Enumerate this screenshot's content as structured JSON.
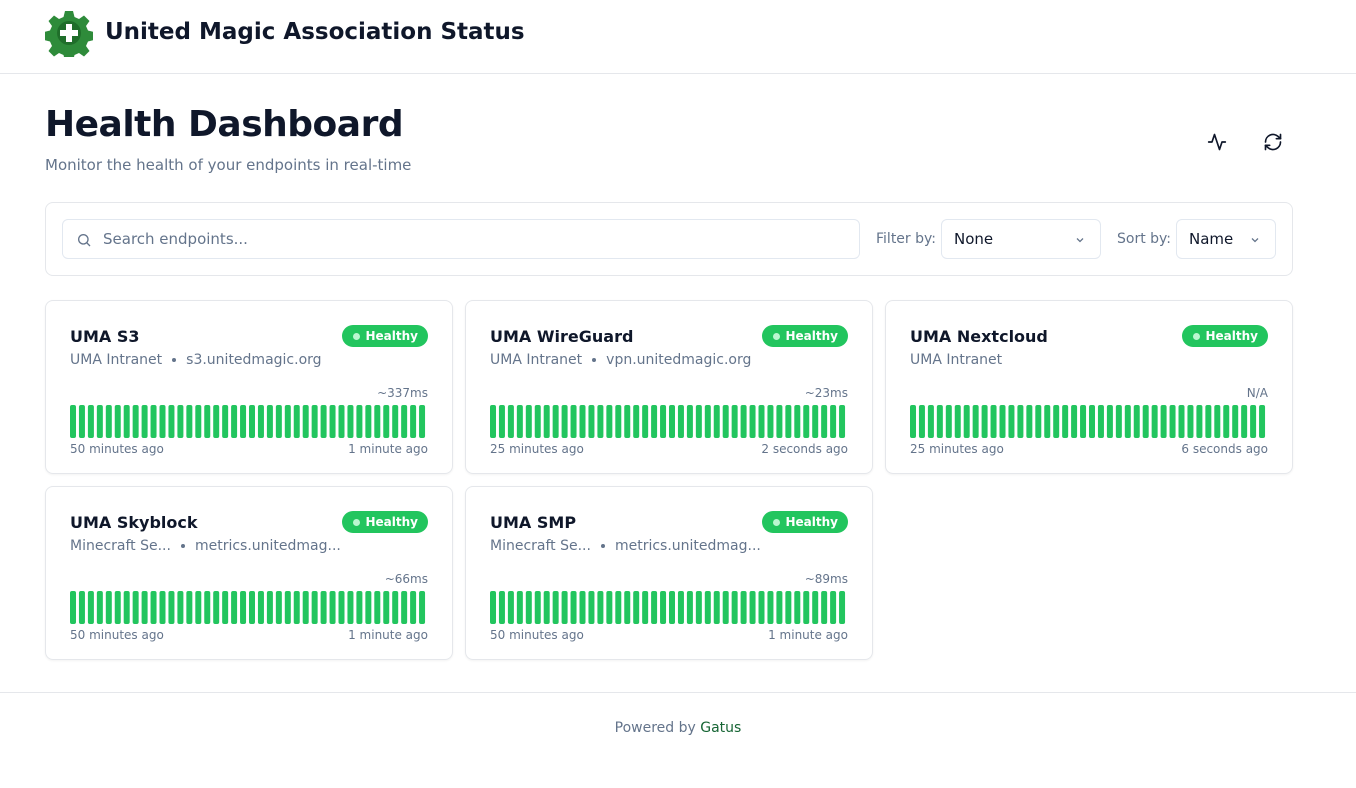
{
  "header": {
    "title": "United Magic Association Status"
  },
  "page": {
    "title": "Health Dashboard",
    "subtitle": "Monitor the health of your endpoints in real-time"
  },
  "controls": {
    "search_placeholder": "Search endpoints...",
    "filter_label": "Filter by:",
    "filter_value": "None",
    "sort_label": "Sort by:",
    "sort_value": "Name"
  },
  "endpoints": [
    {
      "name": "UMA S3",
      "group": "UMA Intranet",
      "hostname": "s3.unitedmagic.org",
      "status": "Healthy",
      "response_time": "~337ms",
      "oldest": "50 minutes ago",
      "newest": "1 minute ago"
    },
    {
      "name": "UMA WireGuard",
      "group": "UMA Intranet",
      "hostname": "vpn.unitedmagic.org",
      "status": "Healthy",
      "response_time": "~23ms",
      "oldest": "25 minutes ago",
      "newest": "2 seconds ago"
    },
    {
      "name": "UMA Nextcloud",
      "group": "UMA Intranet",
      "status": "Healthy",
      "response_time": "N/A",
      "oldest": "25 minutes ago",
      "newest": "6 seconds ago"
    },
    {
      "name": "UMA Skyblock",
      "group": "Minecraft Se...",
      "hostname": "metrics.unitedmag...",
      "status": "Healthy",
      "response_time": "~66ms",
      "oldest": "50 minutes ago",
      "newest": "1 minute ago"
    },
    {
      "name": "UMA SMP",
      "group": "Minecraft Se...",
      "hostname": "metrics.unitedmag...",
      "status": "Healthy",
      "response_time": "~89ms",
      "oldest": "50 minutes ago",
      "newest": "1 minute ago"
    }
  ],
  "footer": {
    "prefix": "Powered by",
    "link": "Gatus"
  }
}
